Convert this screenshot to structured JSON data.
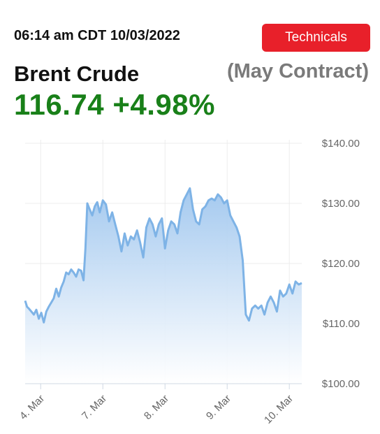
{
  "header": {
    "timestamp": "06:14 am CDT 10/03/2022",
    "technicals_label": "Technicals",
    "instrument": "Brent Crude",
    "contract": "(May Contract)",
    "last_price": "116.74",
    "change_pct": "+4.98%"
  },
  "colors": {
    "button": "#e8202a",
    "price": "#198019",
    "line": "#7eb3e6",
    "fill_top": "#9fc6ee"
  },
  "chart_data": {
    "type": "area",
    "title": "",
    "xlabel": "",
    "ylabel": "",
    "ylim": [
      100,
      140
    ],
    "yticks": [
      "$100.00",
      "$110.00",
      "$120.00",
      "$130.00",
      "$140.00"
    ],
    "ytick_values": [
      100,
      110,
      120,
      130,
      140
    ],
    "xticks": [
      "4. Mar",
      "7. Mar",
      "8. Mar",
      "9. Mar",
      "10. Mar"
    ],
    "xtick_positions": [
      0.25,
      1.25,
      2.25,
      3.25,
      4.25
    ],
    "xlim": [
      0,
      4.45
    ],
    "grid": true,
    "series": [
      {
        "x": [
          0.0,
          0.03,
          0.06,
          0.1,
          0.14,
          0.18,
          0.22,
          0.26,
          0.3,
          0.34,
          0.38,
          0.42,
          0.46,
          0.5,
          0.54,
          0.58,
          0.62,
          0.66,
          0.7,
          0.74,
          0.78,
          0.82,
          0.86,
          0.9,
          0.94,
          0.97,
          1.0,
          1.03,
          1.08,
          1.12,
          1.16,
          1.2,
          1.25,
          1.3,
          1.35,
          1.4,
          1.45,
          1.5,
          1.55,
          1.6,
          1.65,
          1.7,
          1.75,
          1.8,
          1.85,
          1.9,
          1.95,
          2.0,
          2.05,
          2.1,
          2.15,
          2.2,
          2.25,
          2.3,
          2.35,
          2.4,
          2.45,
          2.5,
          2.55,
          2.6,
          2.65,
          2.7,
          2.75,
          2.8,
          2.85,
          2.9,
          2.95,
          3.0,
          3.05,
          3.1,
          3.15,
          3.2,
          3.25,
          3.3,
          3.35,
          3.4,
          3.45,
          3.5,
          3.55,
          3.6,
          3.65,
          3.7,
          3.75,
          3.8,
          3.85,
          3.9,
          3.95,
          4.0,
          4.05,
          4.1,
          4.15,
          4.2,
          4.25,
          4.3,
          4.35,
          4.4,
          4.45
        ],
        "values": [
          113.8,
          112.8,
          112.5,
          112.0,
          111.5,
          112.3,
          110.8,
          111.8,
          110.2,
          112.0,
          112.8,
          113.5,
          114.2,
          115.8,
          114.5,
          116.0,
          117.0,
          118.5,
          118.2,
          119.0,
          118.5,
          117.8,
          119.0,
          118.8,
          117.2,
          122.5,
          130.0,
          129.2,
          128.0,
          129.5,
          130.2,
          128.5,
          130.5,
          129.8,
          127.0,
          128.5,
          126.5,
          124.5,
          122.0,
          125.0,
          123.0,
          124.5,
          124.0,
          125.5,
          123.5,
          121.0,
          126.0,
          127.5,
          126.5,
          124.5,
          126.5,
          127.5,
          122.5,
          125.5,
          127.0,
          126.5,
          125.0,
          128.5,
          130.5,
          131.5,
          132.5,
          129.0,
          127.0,
          126.5,
          129.0,
          129.5,
          130.5,
          130.8,
          130.5,
          131.5,
          131.0,
          130.0,
          130.5,
          128.0,
          127.0,
          126.0,
          124.5,
          120.5,
          111.5,
          110.5,
          112.5,
          113.0,
          112.5,
          113.0,
          111.5,
          113.5,
          114.5,
          113.5,
          112.0,
          115.5,
          114.5,
          115.0,
          116.5,
          115.0,
          117.0,
          116.5,
          116.74
        ]
      }
    ]
  }
}
